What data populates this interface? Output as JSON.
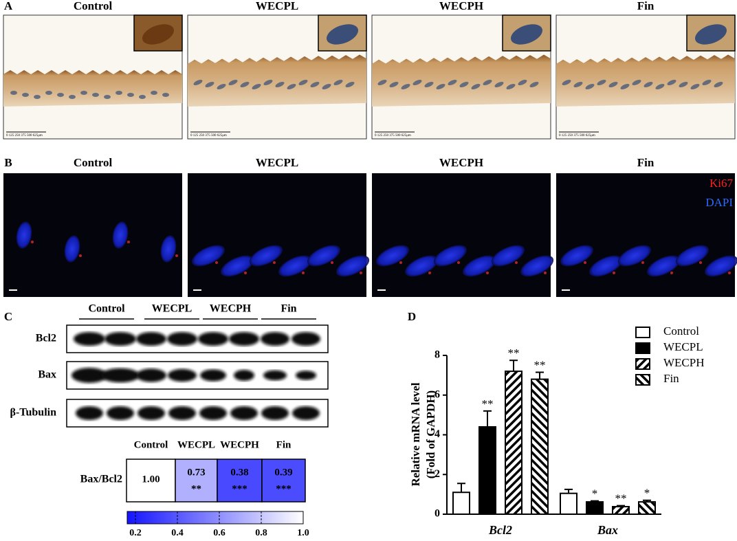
{
  "panel_a": {
    "label": "A",
    "columns": [
      "Control",
      "WECPL",
      "WECPH",
      "Fin"
    ],
    "scale_bar": "0 125 250 375 500 625μm"
  },
  "panel_b": {
    "label": "B",
    "columns": [
      "Control",
      "WECPL",
      "WECPH",
      "Fin"
    ],
    "stains": [
      {
        "name": "Ki67",
        "color": "#ff2020"
      },
      {
        "name": "DAPI",
        "color": "#2b6bff"
      }
    ]
  },
  "panel_c": {
    "label": "C",
    "groups": [
      "Control",
      "WECPL",
      "WECPH",
      "Fin"
    ],
    "rows": [
      "Bcl2",
      "Bax",
      "β-Tubulin"
    ],
    "heatmap": {
      "row_label": "Bax/Bcl2",
      "columns": [
        "Control",
        "WECPL",
        "WECPH",
        "Fin"
      ],
      "values": [
        1.0,
        0.73,
        0.38,
        0.39
      ],
      "value_labels": [
        "1.00",
        "0.73",
        "0.38",
        "0.39"
      ],
      "significance": [
        null,
        "**",
        "***",
        "***"
      ],
      "clim": [
        0.2,
        1.0
      ],
      "cticks": [
        0.2,
        0.4,
        0.6,
        0.8,
        {
          "value": 1.0,
          "label": "1.0"
        }
      ],
      "colors": [
        "#1414ff",
        "#ffffff"
      ]
    }
  },
  "chart_data": {
    "type": "bar",
    "label": "D",
    "ylabel": [
      "Relative mRNA level",
      "(Fold of GAPDH)"
    ],
    "categories": [
      "Bcl2",
      "Bax"
    ],
    "ylim": [
      0,
      8
    ],
    "yticks": [
      0,
      2,
      4,
      6,
      8
    ],
    "series": [
      {
        "name": "Control",
        "color": "#000000",
        "pattern": "none",
        "values": [
          1.1,
          1.05
        ],
        "errors": [
          0.45,
          0.2
        ],
        "significance": [
          null,
          null
        ]
      },
      {
        "name": "WECPL",
        "color": "#000000",
        "pattern": "solid",
        "values": [
          4.4,
          0.62
        ],
        "errors": [
          0.8,
          0.05
        ],
        "significance": [
          "**",
          "*"
        ]
      },
      {
        "name": "WECPH",
        "color": "#000000",
        "pattern": "back-diagonal",
        "values": [
          7.2,
          0.38
        ],
        "errors": [
          0.55,
          0.05
        ],
        "significance": [
          "**",
          "**"
        ]
      },
      {
        "name": "Fin",
        "color": "#000000",
        "pattern": "diagonal",
        "values": [
          6.8,
          0.62
        ],
        "errors": [
          0.35,
          0.08
        ],
        "significance": [
          "**",
          "*"
        ]
      }
    ],
    "legend": "top-right"
  }
}
